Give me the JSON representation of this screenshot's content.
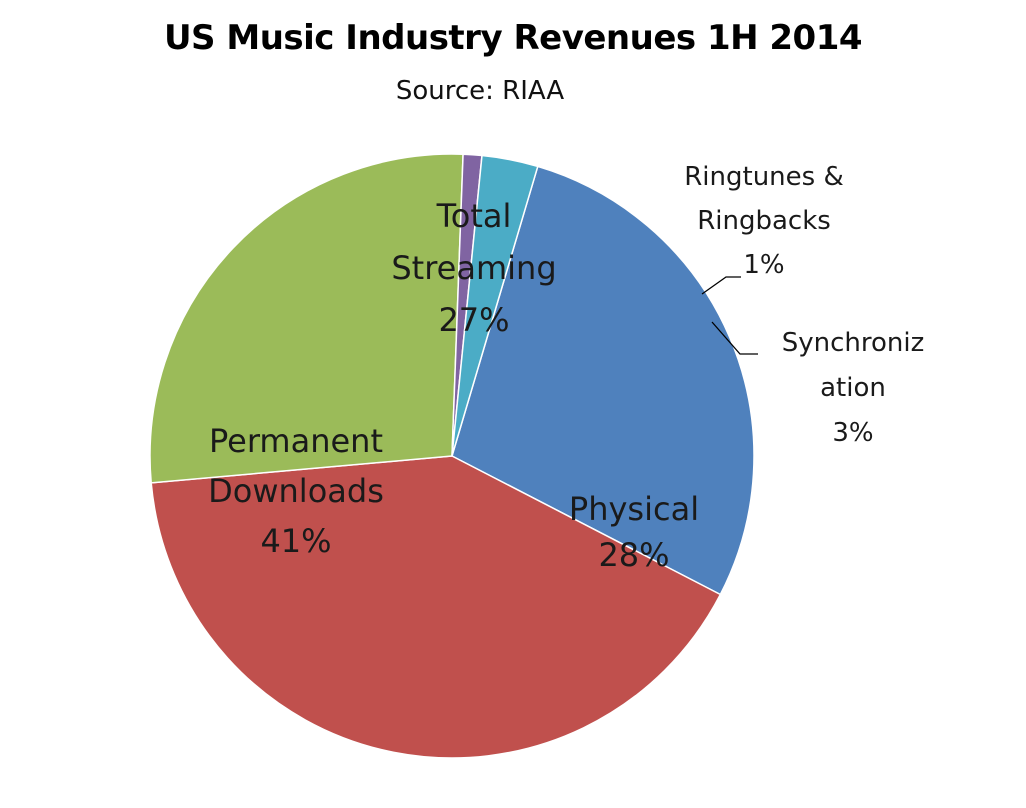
{
  "chart_data": {
    "type": "pie",
    "title": "US Music Industry Revenues 1H 2014",
    "subtitle": "Source: RIAA",
    "slices": [
      {
        "name": "Physical",
        "value": 28,
        "label_lines": [
          "Physical",
          "28%"
        ],
        "color": "#4F81BD"
      },
      {
        "name": "Permanent Downloads",
        "value": 41,
        "label_lines": [
          "Permanent",
          "Downloads",
          "41%"
        ],
        "color": "#C0504D"
      },
      {
        "name": "Total Streaming",
        "value": 27,
        "label_lines": [
          "Total",
          "Streaming",
          "27%"
        ],
        "color": "#9BBB59"
      },
      {
        "name": "Ringtunes & Ringbacks",
        "value": 1,
        "label_lines": [
          "Ringtunes &",
          "Ringbacks",
          "1%"
        ],
        "color": "#8064A2"
      },
      {
        "name": "Synchronization",
        "value": 3,
        "label_lines": [
          "Synchroniz",
          "ation",
          "3%"
        ],
        "color": "#4BACC6"
      }
    ]
  }
}
